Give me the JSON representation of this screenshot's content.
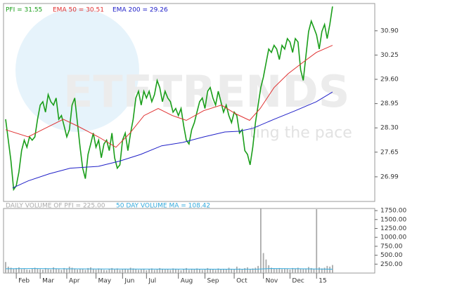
{
  "watermark": "ETFTRENDS",
  "watermark_tagline": "ting the pace",
  "chart_data": [
    {
      "type": "line",
      "xlim": [
        -0.8,
        138.9
      ],
      "ylim": [
        26.33,
        31.63
      ],
      "yticks": [
        {
          "value": 30.9,
          "label": "30.90"
        },
        30.25,
        {
          "value": 29.6,
          "label": "29.60"
        },
        28.95,
        {
          "value": 28.3,
          "label": "28.30"
        },
        27.65,
        26.99
      ],
      "series": [
        {
          "name": "PFI = 31.55",
          "color": "#1a9e1a",
          "x": [
            0,
            1,
            2,
            3,
            4,
            5,
            6,
            7,
            8,
            9,
            10,
            11,
            12,
            13,
            14,
            15,
            16,
            17,
            18,
            19,
            20,
            21,
            22,
            23,
            24,
            25,
            26,
            27,
            28,
            29,
            30,
            31,
            32,
            33,
            34,
            35,
            36,
            37,
            38,
            39,
            40,
            41,
            42,
            43,
            44,
            45,
            46,
            47,
            48,
            49,
            50,
            51,
            52,
            53,
            54,
            55,
            56,
            57,
            58,
            59,
            60,
            61,
            62,
            63,
            64,
            65,
            66,
            67,
            68,
            69,
            70,
            71,
            72,
            73,
            74,
            75,
            76,
            77,
            78,
            79,
            80,
            81,
            82,
            83,
            84,
            85,
            86,
            87,
            88,
            89,
            90,
            91,
            92,
            93,
            94,
            95,
            96,
            97,
            98,
            99,
            100,
            101,
            102,
            103,
            104,
            105,
            106,
            107,
            108,
            109,
            110,
            111,
            112,
            113,
            114,
            115,
            116,
            117,
            118,
            119,
            120,
            121,
            122,
            123
          ],
          "values": [
            28.53,
            27.97,
            27.41,
            26.65,
            26.75,
            27.12,
            27.69,
            27.97,
            27.78,
            28.06,
            27.97,
            28.06,
            28.53,
            28.91,
            29.0,
            28.72,
            29.19,
            29.0,
            28.91,
            29.1,
            28.53,
            28.63,
            28.35,
            28.06,
            28.25,
            28.91,
            29.1,
            28.44,
            27.78,
            27.22,
            26.94,
            27.59,
            27.87,
            28.16,
            27.78,
            27.97,
            27.5,
            27.87,
            27.97,
            27.69,
            28.16,
            27.5,
            27.22,
            27.31,
            27.97,
            28.16,
            27.69,
            28.16,
            28.53,
            29.1,
            29.28,
            28.91,
            29.28,
            29.1,
            29.28,
            29.0,
            29.19,
            29.57,
            29.38,
            29.0,
            29.28,
            29.1,
            29.0,
            28.72,
            28.82,
            28.63,
            28.82,
            28.35,
            27.97,
            27.87,
            28.25,
            28.44,
            28.72,
            29.0,
            29.1,
            28.82,
            29.28,
            29.38,
            29.1,
            28.91,
            29.28,
            29.0,
            28.72,
            28.91,
            28.63,
            28.44,
            28.72,
            28.63,
            28.16,
            28.25,
            27.69,
            27.59,
            27.31,
            27.78,
            28.44,
            28.91,
            29.38,
            29.66,
            30.04,
            30.41,
            30.32,
            30.51,
            30.41,
            30.13,
            30.51,
            30.41,
            30.69,
            30.6,
            30.32,
            30.69,
            30.6,
            29.85,
            29.57,
            30.23,
            30.88,
            31.16,
            30.98,
            30.79,
            30.41,
            30.88,
            31.07,
            30.69,
            31.07,
            31.55
          ]
        },
        {
          "name": "EMA 50 = 30.51",
          "color": "#e03030",
          "x": [
            0,
            8.5,
            13.8,
            21.7,
            27,
            34.9,
            41.5,
            46.8,
            52.1,
            57.4,
            62.7,
            68,
            74.5,
            81.2,
            86.5,
            91.8,
            95.8,
            101,
            106.3,
            111.6,
            116.9,
            123
          ],
          "values": [
            28.25,
            28.06,
            28.25,
            28.53,
            28.35,
            28.06,
            27.78,
            28.16,
            28.63,
            28.82,
            28.63,
            28.5,
            28.76,
            28.91,
            28.68,
            28.5,
            28.82,
            29.38,
            29.75,
            30.04,
            30.32,
            30.51
          ]
        },
        {
          "name": "EMA 200 = 29.26",
          "color": "#2020c8",
          "x": [
            2.6,
            8.5,
            16.4,
            24.3,
            34.9,
            42.9,
            50.8,
            58.7,
            66.7,
            74.6,
            82.5,
            87.8,
            93.1,
            101,
            109,
            116.9,
            123
          ],
          "values": [
            26.69,
            26.88,
            27.07,
            27.22,
            27.27,
            27.41,
            27.59,
            27.82,
            27.91,
            28.06,
            28.19,
            28.21,
            28.29,
            28.53,
            28.76,
            29.0,
            29.26
          ]
        }
      ]
    },
    {
      "type": "bar",
      "xlim": [
        -0.8,
        138.9
      ],
      "ylim": [
        0,
        1810
      ],
      "yticks": [
        {
          "value": 1750,
          "label": "1750.00"
        },
        {
          "value": 1500,
          "label": "1500.00"
        },
        {
          "value": 1250,
          "label": "1250.00"
        },
        {
          "value": 1000,
          "label": "1000.00"
        },
        {
          "value": 750,
          "label": "750.00"
        },
        {
          "value": 500,
          "label": "500.00"
        },
        {
          "value": 250,
          "label": "250.00"
        }
      ],
      "xticks": [
        {
          "value": 4,
          "label": "Feb"
        },
        {
          "value": 13,
          "label": "Mar"
        },
        {
          "value": 23,
          "label": "Apr"
        },
        {
          "value": 34,
          "label": "May"
        },
        {
          "value": 44,
          "label": "Jun"
        },
        {
          "value": 53,
          "label": "Jul"
        },
        {
          "value": 65,
          "label": "Aug"
        },
        {
          "value": 75,
          "label": "Sep"
        },
        {
          "value": 86,
          "label": "Oct"
        },
        {
          "value": 97,
          "label": "Nov"
        },
        {
          "value": 107,
          "label": "Dec"
        },
        {
          "value": 117,
          "label": "15"
        }
      ],
      "series": [
        {
          "name": "DAILY VOLUME OF PFI = 225.00",
          "color": "#aaaaaa",
          "type": "bar",
          "x": [
            0,
            1,
            2,
            3,
            4,
            5,
            6,
            7,
            8,
            9,
            10,
            11,
            12,
            13,
            14,
            15,
            16,
            17,
            18,
            19,
            20,
            21,
            22,
            23,
            24,
            25,
            26,
            27,
            28,
            29,
            30,
            31,
            32,
            33,
            34,
            35,
            36,
            37,
            38,
            39,
            40,
            41,
            42,
            43,
            44,
            45,
            46,
            47,
            48,
            49,
            50,
            51,
            52,
            53,
            54,
            55,
            56,
            57,
            58,
            59,
            60,
            61,
            62,
            63,
            64,
            65,
            66,
            67,
            68,
            69,
            70,
            71,
            72,
            73,
            74,
            75,
            76,
            77,
            78,
            79,
            80,
            81,
            82,
            83,
            84,
            85,
            86,
            87,
            88,
            89,
            90,
            91,
            92,
            93,
            94,
            95,
            96,
            97,
            98,
            99,
            100,
            101,
            102,
            103,
            104,
            105,
            106,
            107,
            108,
            109,
            110,
            111,
            112,
            113,
            114,
            115,
            116,
            117,
            118,
            119,
            120,
            121,
            122,
            123
          ],
          "values": [
            310,
            180,
            150,
            120,
            140,
            160,
            110,
            130,
            100,
            90,
            120,
            150,
            130,
            110,
            95,
            140,
            120,
            100,
            160,
            130,
            110,
            90,
            140,
            120,
            180,
            150,
            130,
            100,
            120,
            110,
            90,
            140,
            160,
            120,
            100,
            130,
            110,
            90,
            80,
            120,
            140,
            100,
            130,
            90,
            110,
            120,
            100,
            150,
            130,
            110,
            90,
            100,
            120,
            80,
            110,
            130,
            90,
            100,
            140,
            120,
            100,
            110,
            90,
            130,
            120,
            100,
            80,
            110,
            140,
            90,
            120,
            100,
            130,
            110,
            90,
            100,
            140,
            120,
            110,
            90,
            130,
            100,
            120,
            110,
            150,
            120,
            100,
            180,
            130,
            110,
            140,
            160,
            120,
            130,
            150,
            200,
            1800,
            560,
            380,
            220,
            150,
            130,
            120,
            140,
            110,
            130,
            120,
            100,
            140,
            130,
            150,
            120,
            110,
            130,
            170,
            140,
            120,
            1790,
            160,
            130,
            150,
            200,
            180,
            225
          ]
        },
        {
          "name": "50 DAY VOLUME MA = 108.42",
          "color": "#33aadd",
          "type": "line",
          "x": [
            0,
            10,
            20,
            40,
            60,
            80,
            95,
            100,
            110,
            123
          ],
          "values": [
            120,
            125,
            120,
            115,
            110,
            108,
            110,
            125,
            120,
            108.42
          ]
        }
      ]
    }
  ]
}
